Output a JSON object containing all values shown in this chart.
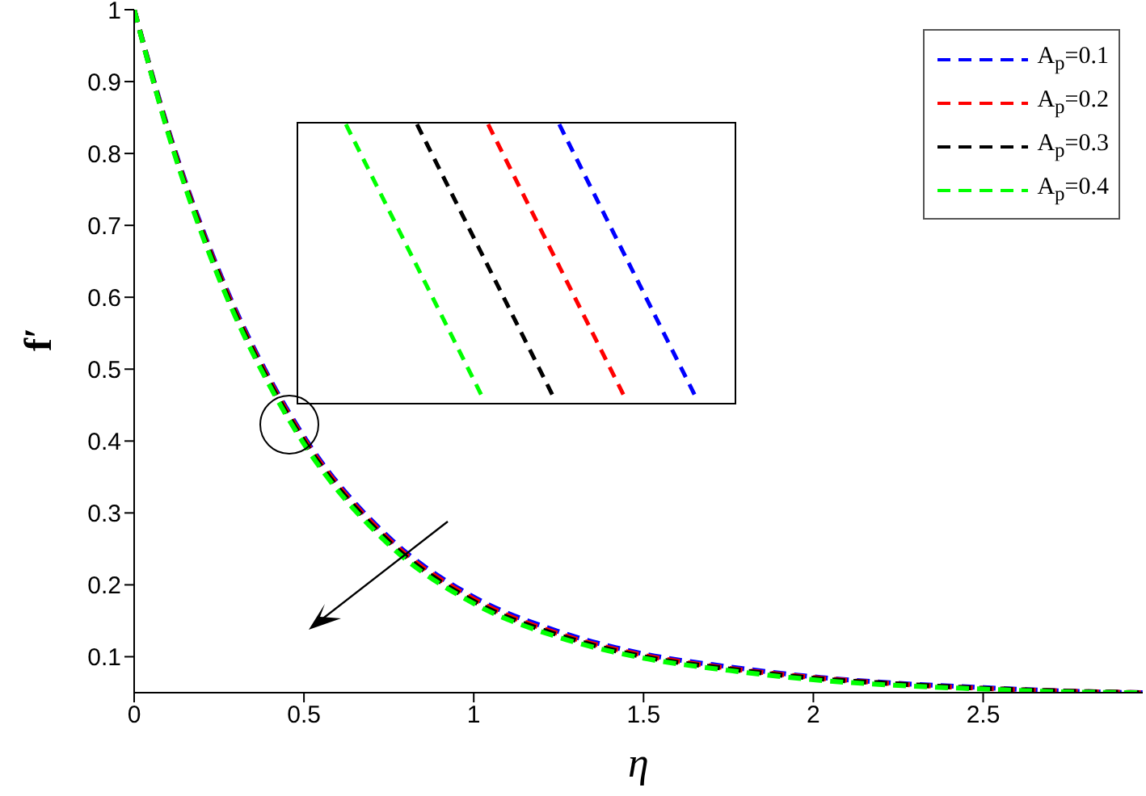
{
  "chart_data": {
    "type": "line",
    "xlabel": "η",
    "ylabel": "f′",
    "x": [
      0,
      0.1,
      0.25,
      0.4,
      0.5,
      0.75,
      1,
      1.25,
      1.5,
      1.75,
      2,
      2.25,
      2.5,
      2.75,
      2.97
    ],
    "series": [
      {
        "name": "A$_{p}$=0.1",
        "color": "#0000ff",
        "values": [
          1,
          0.834,
          0.636,
          0.486,
          0.406,
          0.266,
          0.183,
          0.135,
          0.104,
          0.086,
          0.072,
          0.063,
          0.057,
          0.052,
          0.05
        ]
      },
      {
        "name": "A$_{p}$=0.2",
        "color": "#ff0000",
        "values": [
          1,
          0.832,
          0.633,
          0.483,
          0.403,
          0.263,
          0.18,
          0.132,
          0.102,
          0.084,
          0.071,
          0.062,
          0.056,
          0.052,
          0.05
        ]
      },
      {
        "name": "A$_{p}$=0.3",
        "color": "#000000",
        "values": [
          1,
          0.83,
          0.63,
          0.48,
          0.4,
          0.26,
          0.177,
          0.13,
          0.1,
          0.083,
          0.07,
          0.062,
          0.056,
          0.052,
          0.05
        ]
      },
      {
        "name": "A$_{p}$=0.4",
        "color": "#00ff00",
        "values": [
          1,
          0.828,
          0.626,
          0.476,
          0.396,
          0.256,
          0.174,
          0.127,
          0.098,
          0.081,
          0.068,
          0.06,
          0.055,
          0.051,
          0.05
        ]
      }
    ],
    "xlim": [
      0,
      2.97
    ],
    "xticks": [
      0,
      0.5,
      1,
      1.5,
      2,
      2.5
    ],
    "ylim": [
      0.05,
      1
    ],
    "yticks": [
      0.1,
      0.2,
      0.3,
      0.4,
      0.5,
      0.6,
      0.7,
      0.8,
      0.9,
      1
    ],
    "legend": "top right",
    "line_style": "dashed",
    "marker": "none",
    "grid": false
  }
}
